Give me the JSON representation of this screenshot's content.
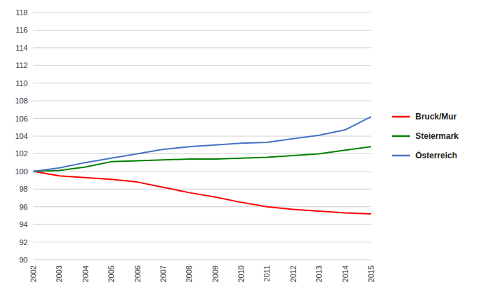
{
  "chart_data": {
    "type": "line",
    "x": [
      2002,
      2003,
      2004,
      2005,
      2006,
      2007,
      2008,
      2009,
      2010,
      2011,
      2012,
      2013,
      2014,
      2015
    ],
    "series": [
      {
        "name": "Bruck/Mur",
        "color": "#ff0000",
        "values": [
          100.0,
          99.5,
          99.3,
          99.1,
          98.8,
          98.2,
          97.6,
          97.1,
          96.5,
          96.0,
          95.7,
          95.5,
          95.3,
          95.2
        ]
      },
      {
        "name": "Steiermark",
        "color": "#008000",
        "values": [
          100.0,
          100.1,
          100.5,
          101.1,
          101.2,
          101.3,
          101.4,
          101.4,
          101.5,
          101.6,
          101.8,
          102.0,
          102.4,
          102.8
        ]
      },
      {
        "name": "Österreich",
        "color": "#4472c4",
        "values": [
          100.0,
          100.4,
          101.0,
          101.5,
          102.0,
          102.5,
          102.8,
          103.0,
          103.2,
          103.3,
          103.7,
          104.1,
          104.7,
          106.2
        ]
      }
    ],
    "xlim": [
      2002,
      2015
    ],
    "xticks": [
      2002,
      2003,
      2004,
      2005,
      2006,
      2007,
      2008,
      2009,
      2010,
      2011,
      2012,
      2013,
      2014,
      2015
    ],
    "ylim": [
      90,
      118
    ],
    "yticks": [
      90,
      92,
      94,
      96,
      98,
      100,
      102,
      104,
      106,
      108,
      110,
      112,
      114,
      116,
      118
    ],
    "grid": true,
    "legend": "right"
  }
}
